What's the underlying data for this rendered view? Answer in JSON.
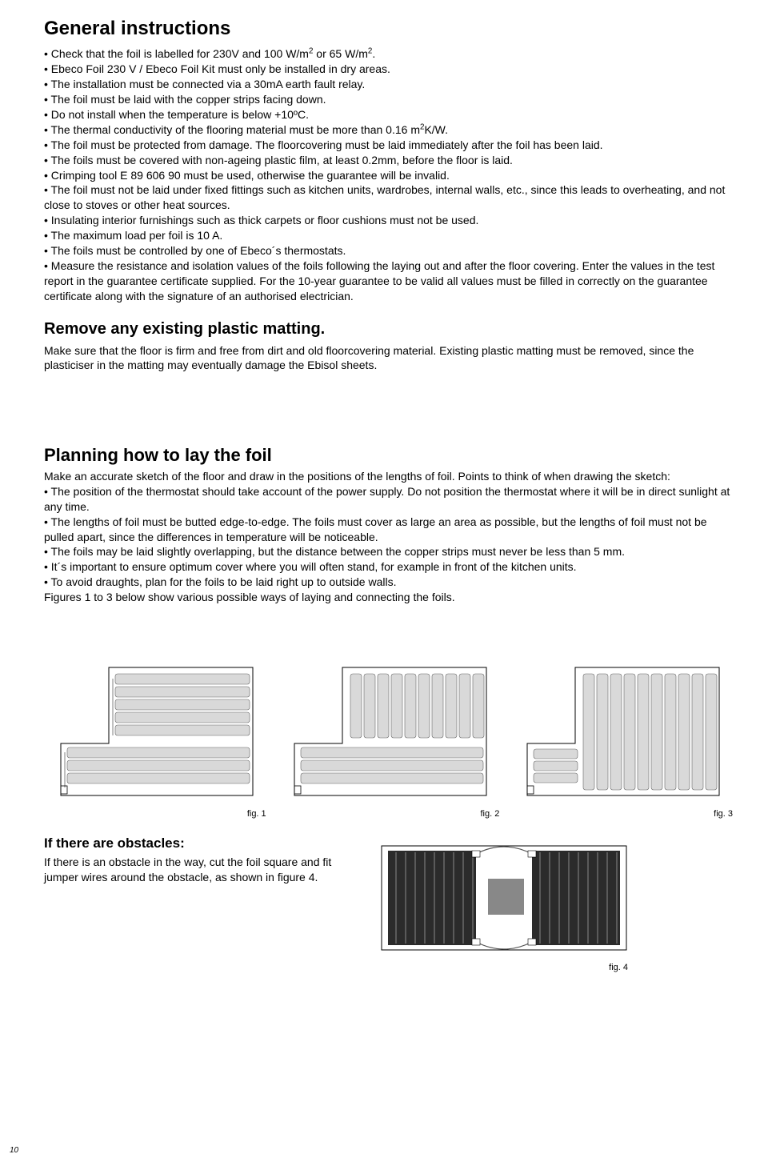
{
  "page_number": "10",
  "general": {
    "heading": "General instructions",
    "bullets_html": "• Check that the foil is labelled for 230V and 100 W/m<sup>2</sup> or 65 W/m<sup>2</sup>.<br>• Ebeco Foil 230 V / Ebeco Foil Kit must only be installed in dry areas.<br>• The installation must be connected via a 30mA earth fault relay.<br>• The foil must be laid with the copper strips facing down.<br>• Do not install when the temperature is below +10ºC.<br>• The thermal conductivity of the flooring material must be more than 0.16 m<sup>2</sup>K/W.<br>• The foil must be protected from damage. The floorcovering must be laid immediately after the foil has been laid.<br>• The foils must be covered with non-ageing plastic film, at least 0.2mm, before the floor is laid.<br>• Crimping tool E 89 606 90 must be used, otherwise the guarantee will be invalid.<br>• The foil must not be laid under fixed fittings such as kitchen units, wardrobes, internal walls, etc., since this leads to overheating, and not close to stoves or other heat sources.<br>• Insulating interior furnishings such as thick carpets or floor cushions must not be used.<br>• The maximum load per foil is 10 A.<br>• The foils must be controlled by one of Ebeco´s thermostats.<br>• Measure the resistance and isolation values of the foils following the laying out and after the floor covering. Enter the values in the test report in the guarantee certificate supplied. For the 10-year guarantee to be valid all values must be filled in correctly on the guarantee certificate along with the signature of an authorised electrician."
  },
  "remove": {
    "heading": "Remove any existing plastic matting.",
    "body": "Make sure that the floor is firm and free from dirt and old floorcovering material. Existing plastic matting must be removed, since the plasticiser in the matting may eventually damage the Ebisol sheets."
  },
  "planning": {
    "heading": "Planning how to lay the foil",
    "body_html": "Make an accurate sketch of the floor and draw in the positions of the lengths of foil. Points to think of when drawing the sketch:<br>• The position of the thermostat should take account of the power supply. Do not position the thermostat where it will be in direct sunlight at any time.<br>• The lengths of foil must be butted edge-to-edge. The foils must cover as large an area as possible, but the lengths of foil must not be pulled apart, since the differences in temperature will be noticeable.<br>• The foils may be laid slightly overlapping, but the distance between the copper strips must never be less than 5 mm.<br>• It´s important to ensure optimum cover where you will often stand, for example in front of the kitchen units.<br>• To avoid draughts, plan for the foils to be laid right up to outside walls.<br>Figures 1 to 3 below show various possible ways of laying and connecting the foils."
  },
  "figs": {
    "fig1": "fig. 1",
    "fig2": "fig. 2",
    "fig3": "fig. 3",
    "fig4": "fig. 4"
  },
  "obstacles": {
    "heading": "If there are obstacles:",
    "body": "If there is an obstacle in the way, cut the foil square and fit jumper wires around the obstacle, as shown in figure 4."
  },
  "colors": {
    "stroke": "#000000",
    "foil_fill": "#d9d9d9",
    "foil_dark": "#2b2b2b",
    "obstacle": "#888888"
  }
}
